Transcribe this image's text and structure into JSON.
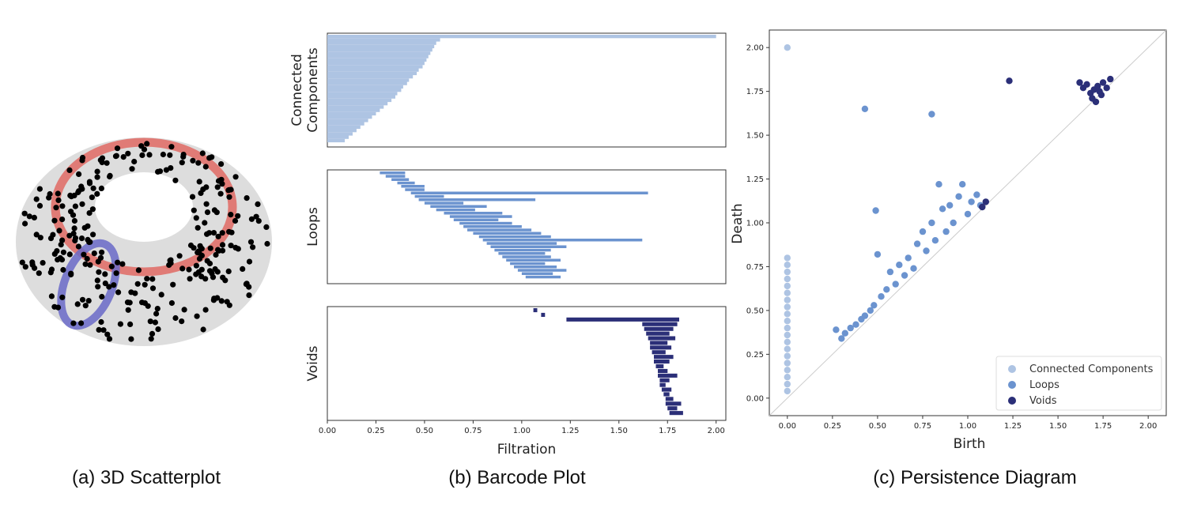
{
  "captions": {
    "a": "(a) 3D Scatterplot",
    "b": "(b) Barcode Plot",
    "c": "(c) Persistence Diagram"
  },
  "colors": {
    "components": "#aec4e3",
    "loops": "#6b93cf",
    "voids": "#2b2f78",
    "torus": "#dddddd",
    "red_ring": "#e0706a",
    "blue_ring": "#6a6ac8",
    "points": "#000000"
  },
  "chart_data": [
    {
      "type": "scatter",
      "panel": "a",
      "description_free": true,
      "title": "",
      "point_count": 300
    },
    {
      "type": "bar",
      "panel": "b",
      "orientation": "horizontal",
      "xlabel": "Filtration",
      "xlim": [
        0.0,
        2.05
      ],
      "xticks": [
        "0.00",
        "0.25",
        "0.50",
        "0.75",
        "1.00",
        "1.25",
        "1.50",
        "1.75",
        "2.00"
      ],
      "subplots": [
        {
          "ylabel_lines": [
            "Connected",
            "Components"
          ],
          "series": "components",
          "bars": [
            [
              0,
              2.0
            ],
            [
              0,
              0.58
            ],
            [
              0,
              0.56
            ],
            [
              0,
              0.55
            ],
            [
              0,
              0.54
            ],
            [
              0,
              0.53
            ],
            [
              0,
              0.52
            ],
            [
              0,
              0.51
            ],
            [
              0,
              0.5
            ],
            [
              0,
              0.49
            ],
            [
              0,
              0.47
            ],
            [
              0,
              0.46
            ],
            [
              0,
              0.44
            ],
            [
              0,
              0.42
            ],
            [
              0,
              0.41
            ],
            [
              0,
              0.39
            ],
            [
              0,
              0.38
            ],
            [
              0,
              0.36
            ],
            [
              0,
              0.35
            ],
            [
              0,
              0.33
            ],
            [
              0,
              0.31
            ],
            [
              0,
              0.29
            ],
            [
              0,
              0.27
            ],
            [
              0,
              0.25
            ],
            [
              0,
              0.23
            ],
            [
              0,
              0.21
            ],
            [
              0,
              0.19
            ],
            [
              0,
              0.17
            ],
            [
              0,
              0.15
            ],
            [
              0,
              0.13
            ],
            [
              0,
              0.11
            ],
            [
              0,
              0.09
            ]
          ]
        },
        {
          "ylabel_lines": [
            "Loops"
          ],
          "series": "loops",
          "bars": [
            [
              0.27,
              0.4
            ],
            [
              0.3,
              0.4
            ],
            [
              0.33,
              0.42
            ],
            [
              0.36,
              0.45
            ],
            [
              0.38,
              0.5
            ],
            [
              0.4,
              0.5
            ],
            [
              0.43,
              1.65
            ],
            [
              0.45,
              0.6
            ],
            [
              0.47,
              1.07
            ],
            [
              0.5,
              0.7
            ],
            [
              0.53,
              0.82
            ],
            [
              0.56,
              0.76
            ],
            [
              0.6,
              0.9
            ],
            [
              0.63,
              0.95
            ],
            [
              0.65,
              0.88
            ],
            [
              0.68,
              0.95
            ],
            [
              0.7,
              1.0
            ],
            [
              0.72,
              1.05
            ],
            [
              0.75,
              1.1
            ],
            [
              0.78,
              1.15
            ],
            [
              0.8,
              1.62
            ],
            [
              0.82,
              1.18
            ],
            [
              0.84,
              1.23
            ],
            [
              0.86,
              1.15
            ],
            [
              0.88,
              1.12
            ],
            [
              0.9,
              1.15
            ],
            [
              0.92,
              1.2
            ],
            [
              0.94,
              1.12
            ],
            [
              0.96,
              1.18
            ],
            [
              0.98,
              1.23
            ],
            [
              1.0,
              1.16
            ],
            [
              1.02,
              1.2
            ]
          ]
        },
        {
          "ylabel_lines": [
            "Voids"
          ],
          "series": "voids",
          "bars": [
            [
              1.06,
              1.08
            ],
            [
              1.1,
              1.12
            ],
            [
              1.23,
              1.81
            ],
            [
              1.62,
              1.8
            ],
            [
              1.63,
              1.78
            ],
            [
              1.64,
              1.76
            ],
            [
              1.65,
              1.79
            ],
            [
              1.66,
              1.75
            ],
            [
              1.66,
              1.77
            ],
            [
              1.67,
              1.74
            ],
            [
              1.68,
              1.78
            ],
            [
              1.68,
              1.76
            ],
            [
              1.69,
              1.73
            ],
            [
              1.7,
              1.75
            ],
            [
              1.7,
              1.8
            ],
            [
              1.71,
              1.76
            ],
            [
              1.71,
              1.74
            ],
            [
              1.72,
              1.77
            ],
            [
              1.73,
              1.76
            ],
            [
              1.74,
              1.78
            ],
            [
              1.74,
              1.82
            ],
            [
              1.75,
              1.8
            ],
            [
              1.76,
              1.83
            ]
          ]
        }
      ]
    },
    {
      "type": "scatter",
      "panel": "c",
      "xlabel": "Birth",
      "ylabel": "Death",
      "xlim": [
        -0.1,
        2.1
      ],
      "ylim": [
        -0.1,
        2.1
      ],
      "xticks": [
        "0.00",
        "0.25",
        "0.50",
        "0.75",
        "1.00",
        "1.25",
        "1.50",
        "1.75",
        "2.00"
      ],
      "yticks": [
        "0.00",
        "0.25",
        "0.50",
        "0.75",
        "1.00",
        "1.25",
        "1.50",
        "1.75",
        "2.00"
      ],
      "legend": {
        "placement": "lower-right",
        "entries": [
          "Connected Components",
          "Loops",
          "Voids"
        ]
      },
      "diagonal": true,
      "series": [
        {
          "name": "Connected Components",
          "color_key": "components",
          "points": [
            [
              0,
              2.0
            ],
            [
              0,
              0.8
            ],
            [
              0,
              0.76
            ],
            [
              0,
              0.72
            ],
            [
              0,
              0.68
            ],
            [
              0,
              0.64
            ],
            [
              0,
              0.6
            ],
            [
              0,
              0.56
            ],
            [
              0,
              0.52
            ],
            [
              0,
              0.48
            ],
            [
              0,
              0.44
            ],
            [
              0,
              0.4
            ],
            [
              0,
              0.36
            ],
            [
              0,
              0.32
            ],
            [
              0,
              0.28
            ],
            [
              0,
              0.24
            ],
            [
              0,
              0.2
            ],
            [
              0,
              0.16
            ],
            [
              0,
              0.12
            ],
            [
              0,
              0.08
            ],
            [
              0,
              0.04
            ]
          ]
        },
        {
          "name": "Loops",
          "color_key": "loops",
          "points": [
            [
              0.43,
              1.65
            ],
            [
              0.8,
              1.62
            ],
            [
              0.49,
              1.07
            ],
            [
              0.27,
              0.39
            ],
            [
              0.3,
              0.34
            ],
            [
              0.32,
              0.37
            ],
            [
              0.35,
              0.4
            ],
            [
              0.38,
              0.42
            ],
            [
              0.41,
              0.45
            ],
            [
              0.43,
              0.47
            ],
            [
              0.46,
              0.5
            ],
            [
              0.48,
              0.53
            ],
            [
              0.5,
              0.82
            ],
            [
              0.52,
              0.58
            ],
            [
              0.55,
              0.62
            ],
            [
              0.57,
              0.72
            ],
            [
              0.6,
              0.65
            ],
            [
              0.62,
              0.76
            ],
            [
              0.65,
              0.7
            ],
            [
              0.67,
              0.8
            ],
            [
              0.7,
              0.74
            ],
            [
              0.72,
              0.88
            ],
            [
              0.75,
              0.95
            ],
            [
              0.77,
              0.84
            ],
            [
              0.8,
              1.0
            ],
            [
              0.82,
              0.9
            ],
            [
              0.84,
              1.22
            ],
            [
              0.86,
              1.08
            ],
            [
              0.88,
              0.95
            ],
            [
              0.9,
              1.1
            ],
            [
              0.92,
              1.0
            ],
            [
              0.95,
              1.15
            ],
            [
              0.97,
              1.22
            ],
            [
              1.0,
              1.05
            ],
            [
              1.02,
              1.12
            ],
            [
              1.05,
              1.16
            ],
            [
              1.07,
              1.1
            ]
          ]
        },
        {
          "name": "Voids",
          "color_key": "voids",
          "points": [
            [
              1.23,
              1.81
            ],
            [
              1.08,
              1.09
            ],
            [
              1.1,
              1.12
            ],
            [
              1.62,
              1.8
            ],
            [
              1.64,
              1.77
            ],
            [
              1.66,
              1.79
            ],
            [
              1.68,
              1.74
            ],
            [
              1.69,
              1.71
            ],
            [
              1.7,
              1.76
            ],
            [
              1.72,
              1.78
            ],
            [
              1.74,
              1.73
            ],
            [
              1.75,
              1.8
            ],
            [
              1.77,
              1.77
            ],
            [
              1.79,
              1.82
            ],
            [
              1.71,
              1.69
            ],
            [
              1.73,
              1.75
            ]
          ]
        }
      ]
    }
  ]
}
